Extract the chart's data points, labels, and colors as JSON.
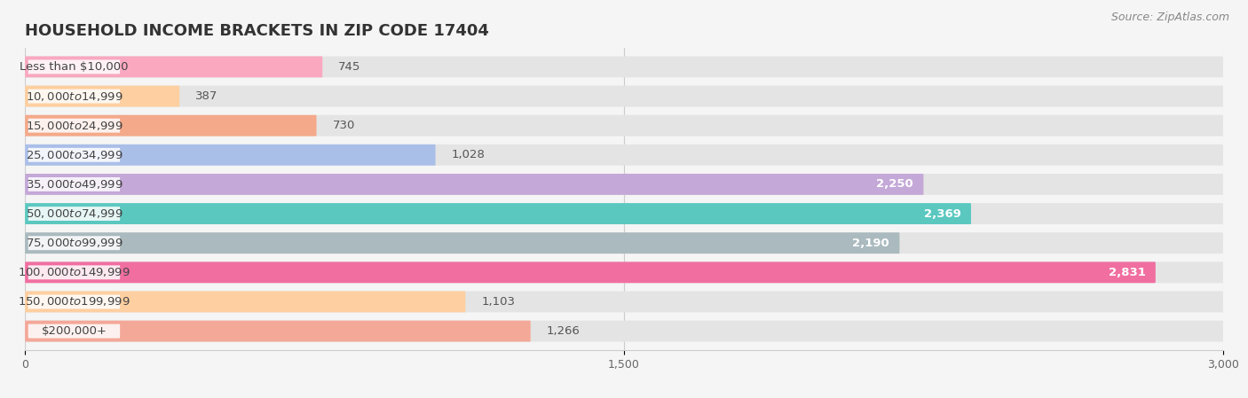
{
  "title": "HOUSEHOLD INCOME BRACKETS IN ZIP CODE 17404",
  "source": "Source: ZipAtlas.com",
  "categories": [
    "Less than $10,000",
    "$10,000 to $14,999",
    "$15,000 to $24,999",
    "$25,000 to $34,999",
    "$35,000 to $49,999",
    "$50,000 to $74,999",
    "$75,000 to $99,999",
    "$100,000 to $149,999",
    "$150,000 to $199,999",
    "$200,000+"
  ],
  "values": [
    745,
    387,
    730,
    1028,
    2250,
    2369,
    2190,
    2831,
    1103,
    1266
  ],
  "bar_colors": [
    "#F9A8C0",
    "#FECFA0",
    "#F4A98A",
    "#AABFE8",
    "#C4A8D8",
    "#5BC8C0",
    "#AABABAE",
    "#F06FA0",
    "#FECFA0",
    "#F4A898"
  ],
  "background_color": "#f5f5f5",
  "bar_bg_color": "#e4e4e4",
  "xlim": [
    0,
    3000
  ],
  "xticks": [
    0,
    1500,
    3000
  ],
  "title_fontsize": 13,
  "label_fontsize": 9.5,
  "value_fontsize": 9.5,
  "source_fontsize": 9
}
